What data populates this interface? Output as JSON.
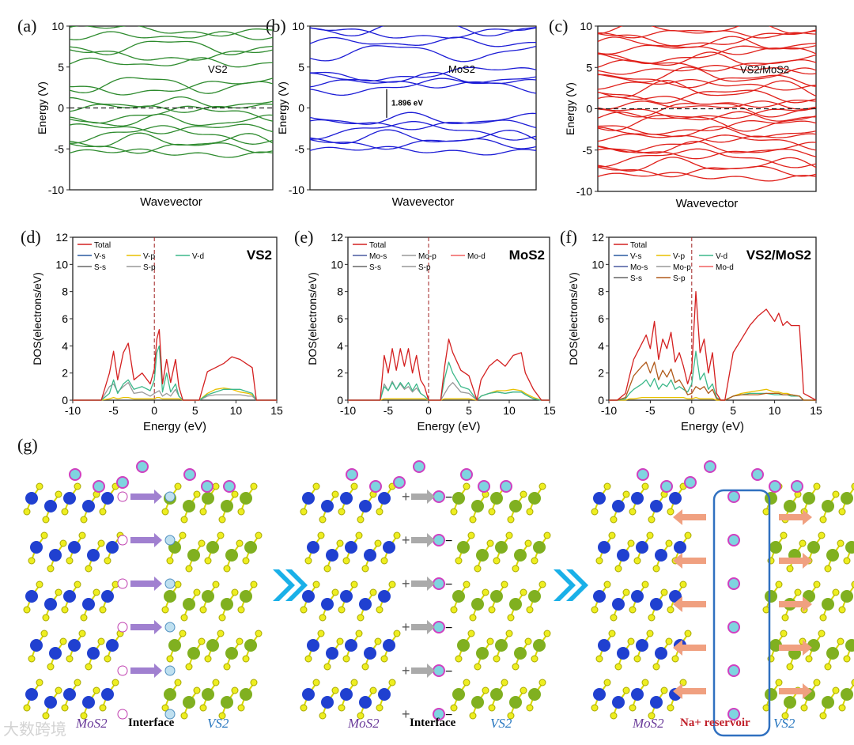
{
  "panel_labels": [
    "(a)",
    "(b)",
    "(c)",
    "(d)",
    "(e)",
    "(f)",
    "(g)"
  ],
  "colors": {
    "vs2": "#2e8b2e",
    "mos2": "#1c1cd6",
    "hetero": "#e0201a"
  },
  "chart_data": [
    {
      "type": "line",
      "id": "a",
      "title": "VS2",
      "xlabel": "Wavevector",
      "ylabel": "Energy (V)",
      "ylim": [
        -10,
        10
      ],
      "yticks": [
        10,
        5,
        0,
        -5,
        -10
      ],
      "fermi_level": 0,
      "bands": [
        -5.5,
        -4.8,
        -4.0,
        -3.3,
        -2.5,
        -1.6,
        -0.8,
        0,
        0.6,
        2.5,
        2.9,
        5.5,
        6.5,
        7.5,
        8.8,
        9.5
      ]
    },
    {
      "type": "line",
      "id": "b",
      "title": "MoS2",
      "xlabel": "Wavevector",
      "ylabel": "Energy (V)",
      "ylim": [
        -10,
        10
      ],
      "yticks": [
        10,
        5,
        0,
        -5,
        -10
      ],
      "annotation": "1.896 eV",
      "bands": [
        -5.2,
        -4.3,
        -3.6,
        -2.8,
        -2.0,
        -1.4,
        2.6,
        3.0,
        3.6,
        4.2,
        6.8,
        8.0,
        9.2,
        9.8
      ]
    },
    {
      "type": "line",
      "id": "c",
      "title": "VS2/MoS2",
      "xlabel": "Wavevector",
      "ylabel": "Energy (V)",
      "ylim": [
        -10,
        10
      ],
      "yticks": [
        10,
        5,
        0,
        -5,
        -10
      ],
      "fermi_level": 0,
      "bands": [
        -8.2,
        -7.5,
        -6.8,
        -6.0,
        -5.4,
        -4.8,
        -4.2,
        -3.5,
        -2.9,
        -2.2,
        -1.6,
        -1.0,
        -0.5,
        0,
        0.4,
        0.9,
        1.6,
        2.3,
        2.9,
        3.4,
        4.0,
        4.7,
        5.3,
        5.9,
        6.6,
        7.2,
        7.9,
        8.5,
        9.1,
        9.7
      ]
    },
    {
      "type": "line",
      "id": "d",
      "title": "VS2",
      "xlabel": "Energy (eV)",
      "ylabel": "DOS(electrons/eV)",
      "xlim": [
        -10,
        15
      ],
      "ylim": [
        0,
        12
      ],
      "xticks": [
        -10,
        -5,
        0,
        5,
        10,
        15
      ],
      "yticks": [
        0,
        2,
        4,
        6,
        8,
        10,
        12
      ],
      "legend": [
        "Total",
        "V-s",
        "V-p",
        "V-d",
        "S-s",
        "S-p"
      ],
      "x": [
        -10,
        -6.5,
        -5.5,
        -5,
        -4.5,
        -3.8,
        -3.2,
        -2.5,
        -1.5,
        -0.5,
        0,
        0.3,
        0.6,
        1,
        1.5,
        2,
        2.6,
        3,
        3.5,
        5.5,
        6.5,
        7.5,
        8.5,
        9.5,
        10.5,
        11.5,
        12,
        12.5,
        15
      ],
      "series": [
        {
          "name": "Total",
          "color": "#d42020",
          "values": [
            0,
            0,
            2,
            3.6,
            1.5,
            3.5,
            4.2,
            1.5,
            2,
            1.2,
            2.3,
            4.5,
            5.2,
            1.2,
            3,
            1.3,
            3,
            1,
            0,
            0,
            2.1,
            2.4,
            2.7,
            3.2,
            3,
            2.6,
            2.4,
            0,
            0
          ]
        },
        {
          "name": "V-d",
          "color": "#3cb88a",
          "values": [
            0,
            0,
            0.5,
            1.5,
            0.5,
            1.2,
            1.5,
            0.8,
            1,
            0.7,
            1.5,
            3.5,
            4,
            0.6,
            2,
            0.6,
            1.2,
            0.3,
            0,
            0,
            0.4,
            0.6,
            0.8,
            0.8,
            0.8,
            0.6,
            0.5,
            0,
            0
          ]
        },
        {
          "name": "S-p",
          "color": "#999999",
          "values": [
            0,
            0,
            1,
            1.2,
            0.6,
            1,
            1.3,
            0.5,
            0.6,
            0.3,
            0.5,
            0.6,
            0.7,
            0.3,
            0.5,
            0.3,
            0.8,
            0.3,
            0,
            0,
            0.3,
            0.4,
            0.4,
            0.4,
            0.4,
            0.3,
            0.3,
            0,
            0
          ]
        },
        {
          "name": "V-p",
          "color": "#e8c000",
          "values": [
            0,
            0,
            0.1,
            0.2,
            0.1,
            0.2,
            0.2,
            0.1,
            0.1,
            0.1,
            0.1,
            0.2,
            0.2,
            0.1,
            0.1,
            0.1,
            0.1,
            0.1,
            0,
            0,
            0.5,
            0.8,
            0.9,
            0.8,
            0.6,
            0.5,
            0.4,
            0,
            0
          ]
        }
      ]
    },
    {
      "type": "line",
      "id": "e",
      "title": "MoS2",
      "xlabel": "Energy (eV)",
      "ylabel": "DOS(electrons/eV)",
      "xlim": [
        -10,
        15
      ],
      "ylim": [
        0,
        12
      ],
      "xticks": [
        -10,
        -5,
        0,
        5,
        10,
        15
      ],
      "yticks": [
        0,
        2,
        4,
        6,
        8,
        10,
        12
      ],
      "legend": [
        "Total",
        "Mo-s",
        "Mo-p",
        "Mo-d",
        "S-s",
        "S-p"
      ],
      "x": [
        -10,
        -6,
        -5.5,
        -5,
        -4.5,
        -4,
        -3.5,
        -3,
        -2.5,
        -2,
        -1.5,
        -1,
        -0.5,
        0,
        1.5,
        2,
        2.5,
        3,
        4,
        5,
        6,
        6.5,
        7.5,
        8.5,
        9.5,
        10.5,
        11.5,
        12,
        13,
        14,
        15
      ],
      "series": [
        {
          "name": "Total",
          "color": "#d42020",
          "values": [
            0,
            0,
            3.3,
            2,
            3.8,
            2.2,
            3.8,
            2.5,
            3.8,
            2,
            3.3,
            1.5,
            1,
            0,
            0,
            2.5,
            4.5,
            3.5,
            2.2,
            1.8,
            0,
            1.5,
            2.5,
            3,
            2.5,
            3.3,
            3.5,
            2,
            0.8,
            0,
            0
          ]
        },
        {
          "name": "Mo-d",
          "color": "#3cb88a",
          "values": [
            0,
            0,
            1,
            0.7,
            1.3,
            0.8,
            1.3,
            0.9,
            1.3,
            0.7,
            1.2,
            0.5,
            0.3,
            0,
            0,
            1.6,
            2.8,
            2,
            1,
            0.8,
            0,
            0.3,
            0.5,
            0.6,
            0.5,
            0.6,
            0.6,
            0.4,
            0.1,
            0,
            0
          ]
        },
        {
          "name": "S-p",
          "color": "#999999",
          "values": [
            0,
            0,
            1.2,
            0.7,
            1.4,
            0.8,
            1.2,
            0.8,
            1,
            0.6,
            0.9,
            0.5,
            0.3,
            0,
            0,
            0.5,
            1,
            1.3,
            0.6,
            0.5,
            0,
            0.3,
            0.5,
            0.6,
            0.5,
            0.6,
            0.6,
            0.4,
            0.1,
            0,
            0
          ]
        },
        {
          "name": "Mo-p",
          "color": "#e8c000",
          "values": [
            0,
            0,
            0.1,
            0.1,
            0.1,
            0.1,
            0.1,
            0.1,
            0.1,
            0.1,
            0.1,
            0.1,
            0.1,
            0,
            0,
            0.1,
            0.1,
            0.1,
            0.1,
            0.1,
            0,
            0.3,
            0.5,
            0.7,
            0.7,
            0.8,
            0.7,
            0.5,
            0.2,
            0,
            0
          ]
        }
      ]
    },
    {
      "type": "line",
      "id": "f",
      "title": "VS2/MoS2",
      "xlabel": "Energy (eV)",
      "ylabel": "DOS(electrons/eV)",
      "xlim": [
        -10,
        15
      ],
      "ylim": [
        0,
        12
      ],
      "xticks": [
        -10,
        -5,
        0,
        5,
        10,
        15
      ],
      "yticks": [
        0,
        2,
        4,
        6,
        8,
        10,
        12
      ],
      "legend": [
        "Total",
        "V-s",
        "V-p",
        "V-d",
        "Mo-s",
        "Mo-p",
        "Mo-d",
        "S-s",
        "S-p"
      ],
      "x": [
        -10,
        -9,
        -8,
        -7.5,
        -7,
        -6,
        -5.5,
        -5,
        -4.5,
        -4,
        -3.5,
        -3,
        -2.5,
        -2,
        -1.5,
        -1,
        -0.5,
        0,
        0.5,
        1,
        1.5,
        2,
        2.5,
        3,
        3.5,
        4,
        5,
        6,
        7,
        8,
        9,
        10,
        10.5,
        11,
        11.5,
        12,
        13,
        13.5,
        15
      ],
      "series": [
        {
          "name": "Total",
          "color": "#d42020",
          "values": [
            0,
            0,
            0.5,
            1.8,
            3,
            4.2,
            4.8,
            3.8,
            5.8,
            3,
            4.5,
            3.8,
            5,
            2.8,
            3.5,
            2.5,
            1.2,
            2.2,
            8,
            3.5,
            4.5,
            2,
            3.5,
            0.5,
            0,
            0,
            3.5,
            4.5,
            5.5,
            6.2,
            6.7,
            5.8,
            6.4,
            5.5,
            5.8,
            5.5,
            5.5,
            0.5,
            0
          ]
        },
        {
          "name": "S-p",
          "color": "#b05a1a",
          "values": [
            0,
            0,
            0.2,
            1,
            1.8,
            2.5,
            2.8,
            2,
            2.8,
            1.5,
            2.2,
            1.7,
            2.3,
            1.3,
            1.5,
            1,
            0.4,
            0.5,
            1,
            0.8,
            1,
            0.5,
            0.8,
            0.1,
            0,
            0,
            0.3,
            0.4,
            0.4,
            0.4,
            0.5,
            0.5,
            0.5,
            0.4,
            0.4,
            0.4,
            0.3,
            0,
            0
          ]
        },
        {
          "name": "V-d",
          "color": "#3cb88a",
          "values": [
            0,
            0,
            0.1,
            0.5,
            0.8,
            1.2,
            1.5,
            1,
            1.6,
            0.8,
            1.2,
            1,
            1.5,
            0.8,
            1,
            0.8,
            0.6,
            1.2,
            3.6,
            1.5,
            2,
            0.8,
            1.2,
            0.2,
            0,
            0,
            0.3,
            0.4,
            0.5,
            0.5,
            0.5,
            0.4,
            0.4,
            0.4,
            0.4,
            0.3,
            0.3,
            0,
            0
          ]
        },
        {
          "name": "V-p",
          "color": "#e8c000",
          "values": [
            0,
            0,
            0,
            0.1,
            0.1,
            0.2,
            0.2,
            0.2,
            0.2,
            0.2,
            0.2,
            0.2,
            0.2,
            0.2,
            0.2,
            0.2,
            0.1,
            0.1,
            0.2,
            0.1,
            0.1,
            0.1,
            0.1,
            0,
            0,
            0,
            0.3,
            0.5,
            0.6,
            0.7,
            0.8,
            0.6,
            0.6,
            0.5,
            0.5,
            0.4,
            0.3,
            0,
            0
          ]
        }
      ]
    }
  ],
  "diagram": {
    "panels": [
      {
        "left": "MoS2",
        "middle": "Interface",
        "right": "VS2"
      },
      {
        "left": "MoS2",
        "middle": "Interface",
        "right": "VS2"
      },
      {
        "left": "MoS2",
        "middle": "Na+ reservoir",
        "right": "VS2"
      }
    ],
    "ion_label": "Na+",
    "plus": "+",
    "minus": "−"
  },
  "watermark": "大数跨境"
}
